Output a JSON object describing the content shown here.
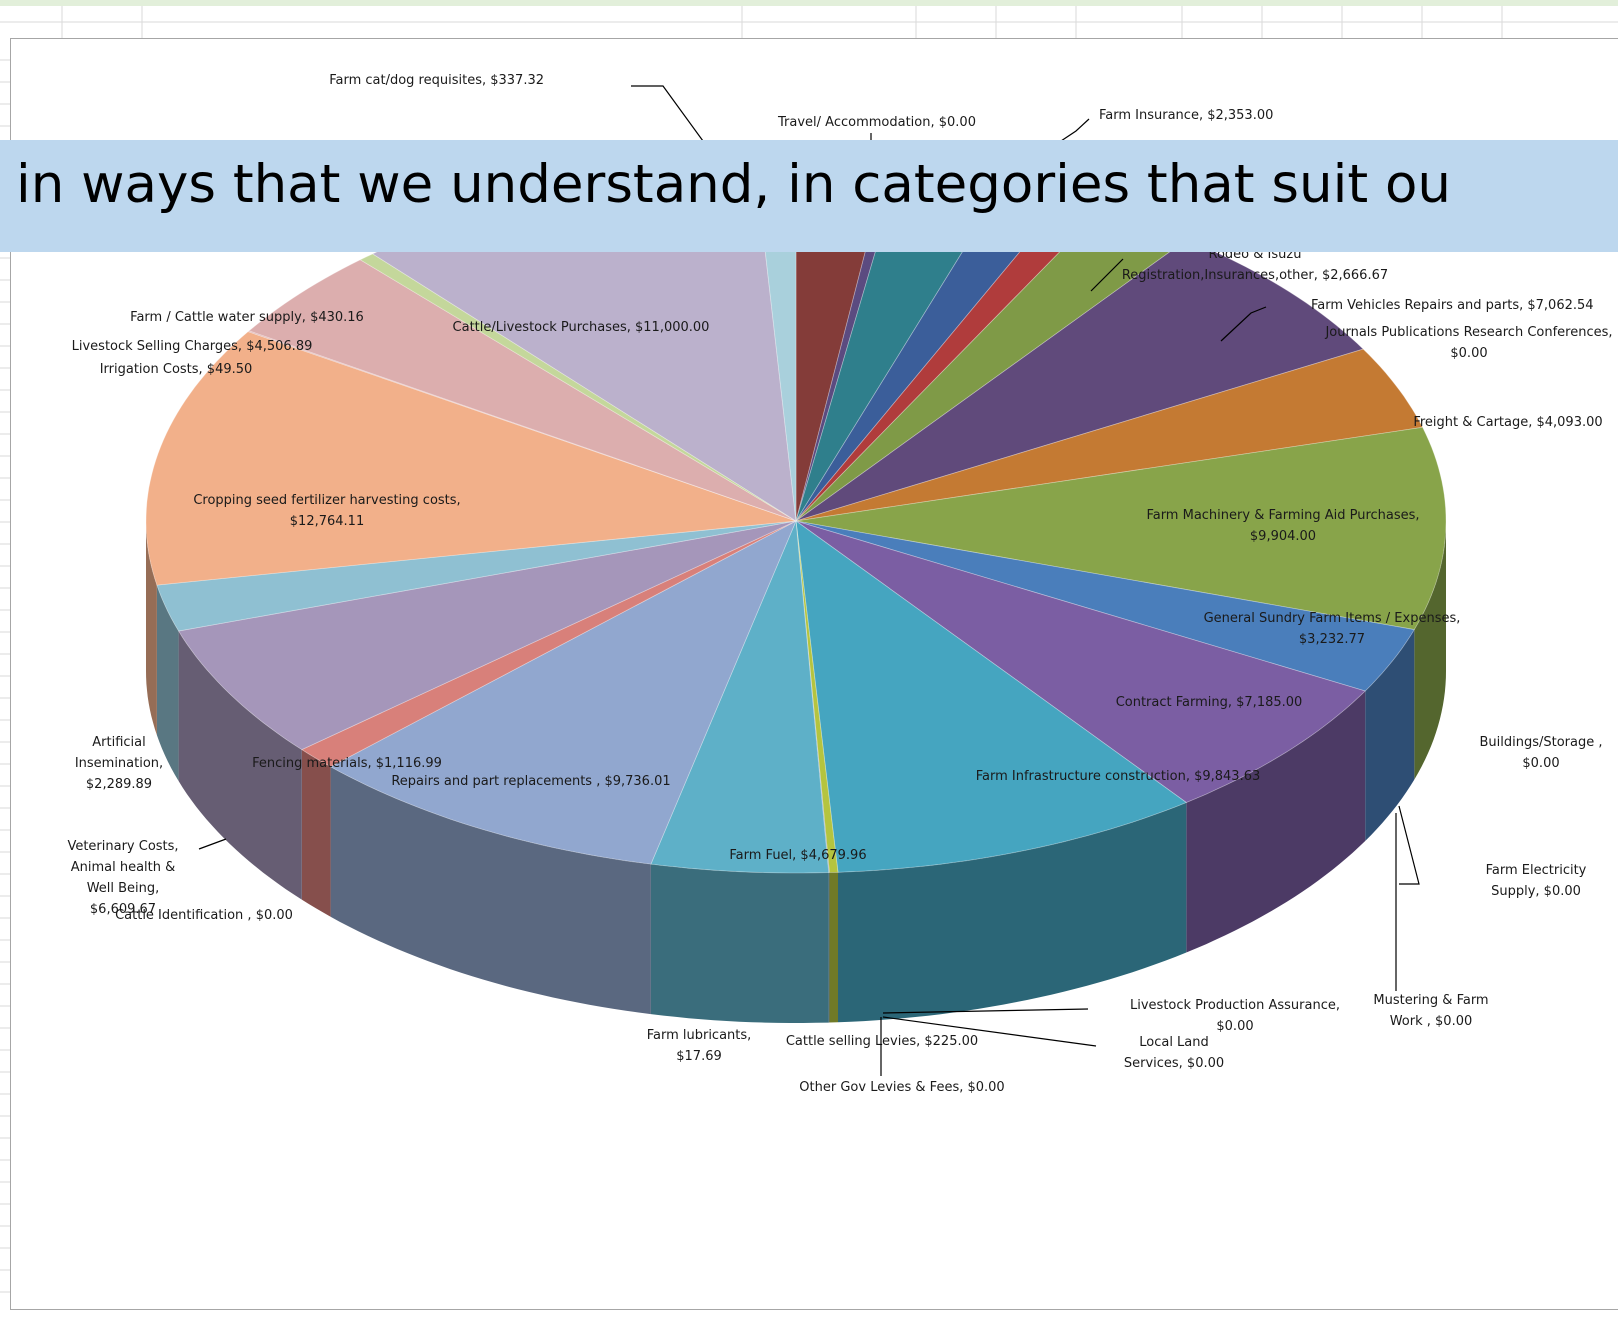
{
  "banner": {
    "text": "in ways that we understand, in categories that suit ou"
  },
  "colors": {
    "banner_bg": "#bdd7ee",
    "frame_border": "#a6a6a6",
    "grid_line": "#dadada",
    "top_strip": "#e2efda"
  },
  "chart_data": {
    "type": "pie",
    "variant": "3d-exploded",
    "title": "",
    "legend": "none",
    "slices": [
      {
        "label": "Farm Insurance",
        "value": 2353.0,
        "display": "Farm Insurance, $2,353.00",
        "color": "#843c39"
      },
      {
        "label": "Farm cat/dog requisites",
        "value": 337.32,
        "display": "Farm cat/dog requisites, $337.32",
        "color": "#5b4b80"
      },
      {
        "label": "Unlabeled (teal)",
        "value": 2800.0,
        "display": "",
        "color": "#2f7f8c"
      },
      {
        "label": "Unlabeled (blue)",
        "value": 1700.0,
        "display": "",
        "color": "#3b5e9a"
      },
      {
        "label": "Unlabeled (red)",
        "value": 1100.0,
        "display": "",
        "color": "#b03c3c"
      },
      {
        "label": "Rodeo & Isuzu Registration,Insurances,other",
        "value": 2666.67,
        "display": "Rodeo & Isuzu Registration,Insurances,other, $2,666.67",
        "color": "#7f9a47"
      },
      {
        "label": "Farm Vehicles Repairs and parts",
        "value": 7062.54,
        "display": "Farm Vehicles Repairs and parts, $7,062.54",
        "color": "#604a7b"
      },
      {
        "label": "Journals Publications Research Conferences",
        "value": 0.0,
        "display": "Journals Publications Research Conferences, $0.00",
        "color": "#604a7b"
      },
      {
        "label": "Freight & Cartage",
        "value": 4093.0,
        "display": "Freight & Cartage, $4,093.00",
        "color": "#c47a33"
      },
      {
        "label": "Farm Machinery & Farming Aid Purchases",
        "value": 9904.0,
        "display": "Farm Machinery & Farming Aid Purchases, $9,904.00",
        "color": "#88a44a"
      },
      {
        "label": "General Sundry Farm Items / Expenses",
        "value": 3232.77,
        "display": "General Sundry Farm Items / Expenses, $3,232.77",
        "color": "#4a7ebb"
      },
      {
        "label": "Contract Farming",
        "value": 7185.0,
        "display": "Contract Farming, $7,185.00",
        "color": "#7b5ea3"
      },
      {
        "label": "Buildings/Storage",
        "value": 0.0,
        "display": "Buildings/Storage , $0.00",
        "color": "#7b5ea3"
      },
      {
        "label": "Farm Electricity Supply",
        "value": 0.0,
        "display": "Farm Electricity Supply, $0.00",
        "color": "#7b5ea3"
      },
      {
        "label": "Mustering & Farm Work",
        "value": 0.0,
        "display": "Mustering & Farm Work , $0.00",
        "color": "#7b5ea3"
      },
      {
        "label": "Farm Infrastructure construction",
        "value": 9843.63,
        "display": "Farm Infrastructure construction, $9,843.63",
        "color": "#45a5c0"
      },
      {
        "label": "Livestock Production Assurance",
        "value": 0.0,
        "display": "Livestock Production Assurance, $0.00",
        "color": "#45a5c0"
      },
      {
        "label": "Local Land Services",
        "value": 0.0,
        "display": "Local Land Services, $0.00",
        "color": "#45a5c0"
      },
      {
        "label": "Other Gov Levies & Fees",
        "value": 0.0,
        "display": "Other Gov Levies & Fees, $0.00",
        "color": "#45a5c0"
      },
      {
        "label": "Cattle selling Levies",
        "value": 225.0,
        "display": "Cattle selling Levies, $225.00",
        "color": "#b5c43f"
      },
      {
        "label": "Farm lubricants",
        "value": 17.69,
        "display": "Farm lubricants, $17.69",
        "color": "#6b7f9a"
      },
      {
        "label": "Farm Fuel",
        "value": 4679.96,
        "display": "Farm Fuel, $4,679.96",
        "color": "#5eb0c8"
      },
      {
        "label": "Repairs and part replacements",
        "value": 9736.01,
        "display": "Repairs and part replacements , $9,736.01",
        "color": "#91a7cf"
      },
      {
        "label": "Fencing materials",
        "value": 1116.99,
        "display": "Fencing materials, $1,116.99",
        "color": "#d8807a"
      },
      {
        "label": "Cattle Identification",
        "value": 0.0,
        "display": "Cattle Identification , $0.00",
        "color": "#a492bb"
      },
      {
        "label": "Veterinary Costs, Animal health & Well Being",
        "value": 6609.67,
        "display": "Veterinary Costs, Animal health & Well Being, $6,609.67",
        "color": "#a596ba"
      },
      {
        "label": "Artificial Insemination",
        "value": 2289.89,
        "display": "Artificial Insemination, $2,289.89",
        "color": "#8fc0d2"
      },
      {
        "label": "Cropping seed fertilizer harvesting costs",
        "value": 12764.11,
        "display": "Cropping seed fertilizer harvesting costs, $12,764.11",
        "color": "#f2b08a"
      },
      {
        "label": "Irrigation Costs",
        "value": 49.5,
        "display": "Irrigation Costs, $49.50",
        "color": "#dcaeae"
      },
      {
        "label": "Livestock Selling Charges",
        "value": 4506.89,
        "display": "Livestock Selling Charges, $4,506.89",
        "color": "#dcaeae"
      },
      {
        "label": "Farm / Cattle water supply",
        "value": 430.16,
        "display": "Farm / Cattle water supply, $430.16",
        "color": "#c4d79b"
      },
      {
        "label": "Cattle/Livestock Purchases",
        "value": 11000.0,
        "display": "Cattle/Livestock Purchases, $11,000.00",
        "color": "#bbb1cc"
      },
      {
        "label": "Unlabeled (light blue)",
        "value": 1050.0,
        "display": "",
        "color": "#a9d0dc"
      },
      {
        "label": "Travel/ Accommodation",
        "value": 0.0,
        "display": "Travel/ Accommodation, $0.00",
        "color": "#a9d0dc"
      }
    ],
    "labels": [
      {
        "key": "cat",
        "lines": [
          "Farm cat/dog requisites, $337.32"
        ]
      },
      {
        "key": "travel",
        "lines": [
          "Travel/ Accommodation, $0.00"
        ]
      },
      {
        "key": "ins",
        "lines": [
          "Farm Insurance, $2,353.00"
        ]
      },
      {
        "key": "rodeo",
        "lines": [
          "Rodeo & Isuzu",
          "Registration,Insurances,other, $2,666.67"
        ]
      },
      {
        "key": "vehicles",
        "lines": [
          "Farm Vehicles Repairs and parts, $7,062.54"
        ]
      },
      {
        "key": "journals",
        "lines": [
          "Journals Publications Research Conferences,",
          "$0.00"
        ]
      },
      {
        "key": "freight",
        "lines": [
          "Freight & Cartage, $4,093.00"
        ]
      },
      {
        "key": "machinery",
        "lines": [
          "Farm Machinery & Farming Aid Purchases,",
          "$9,904.00"
        ]
      },
      {
        "key": "sundry",
        "lines": [
          "General Sundry Farm Items / Expenses,",
          "$3,232.77"
        ]
      },
      {
        "key": "contract",
        "lines": [
          "Contract Farming, $7,185.00"
        ]
      },
      {
        "key": "buildings",
        "lines": [
          "Buildings/Storage ,",
          "$0.00"
        ]
      },
      {
        "key": "electricity",
        "lines": [
          "Farm Electricity",
          "Supply, $0.00"
        ]
      },
      {
        "key": "mustering",
        "lines": [
          "Mustering & Farm",
          "Work , $0.00"
        ]
      },
      {
        "key": "lpa",
        "lines": [
          "Livestock Production Assurance,",
          "$0.00"
        ]
      },
      {
        "key": "lls",
        "lines": [
          "Local Land",
          "Services, $0.00"
        ]
      },
      {
        "key": "gov",
        "lines": [
          "Other Gov Levies & Fees, $0.00"
        ]
      },
      {
        "key": "levies",
        "lines": [
          "Cattle selling Levies, $225.00"
        ]
      },
      {
        "key": "lubricants",
        "lines": [
          "Farm lubricants,",
          "$17.69"
        ]
      },
      {
        "key": "infra",
        "lines": [
          "Farm Infrastructure construction, $9,843.63"
        ]
      },
      {
        "key": "fuel",
        "lines": [
          "Farm Fuel, $4,679.96"
        ]
      },
      {
        "key": "repairs",
        "lines": [
          "Repairs and part replacements , $9,736.01"
        ]
      },
      {
        "key": "fencing",
        "lines": [
          "Fencing materials, $1,116.99"
        ]
      },
      {
        "key": "ident",
        "lines": [
          "Cattle Identification , $0.00"
        ]
      },
      {
        "key": "vet",
        "lines": [
          "Veterinary Costs,",
          "Animal health &",
          "Well Being,",
          "$6,609.67"
        ]
      },
      {
        "key": "ai",
        "lines": [
          "Artificial",
          "Insemination,",
          "$2,289.89"
        ]
      },
      {
        "key": "crop",
        "lines": [
          "Cropping seed fertilizer harvesting costs,",
          "$12,764.11"
        ]
      },
      {
        "key": "irrig",
        "lines": [
          "Irrigation Costs, $49.50"
        ]
      },
      {
        "key": "selling",
        "lines": [
          "Livestock Selling Charges, $4,506.89"
        ]
      },
      {
        "key": "water",
        "lines": [
          "Farm / Cattle water supply, $430.16"
        ]
      },
      {
        "key": "purchases",
        "lines": [
          "Cattle/Livestock Purchases, $11,000.00"
        ]
      }
    ]
  }
}
